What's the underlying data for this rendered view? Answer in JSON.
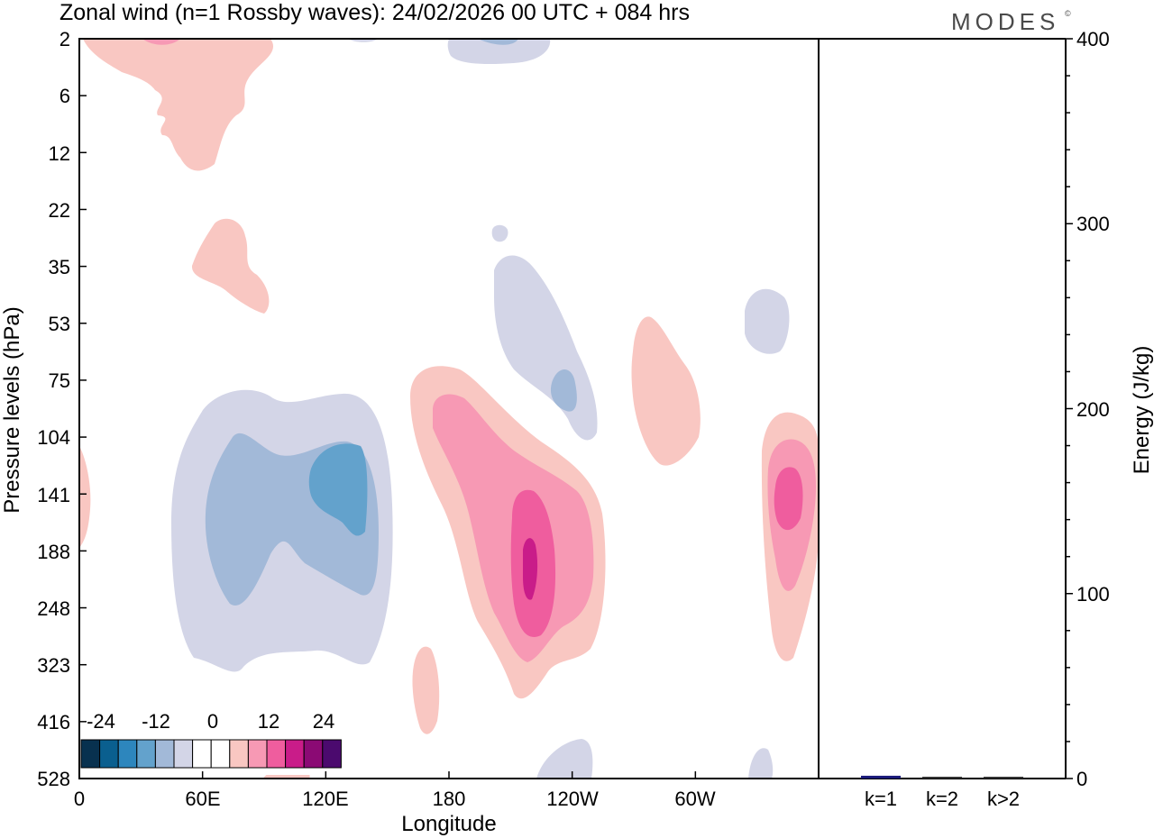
{
  "title": "Zonal wind (n=1 Rossby waves):  24/02/2026  00 UTC  + 084 hrs",
  "logo": "MODES",
  "logo_mark": "©",
  "chart_data": [
    {
      "type": "heatmap",
      "title": "Zonal wind (n=1 Rossby waves):  24/02/2026  00 UTC  + 084 hrs",
      "xlabel": "Longitude",
      "ylabel": "Pressure levels (hPa)",
      "x_ticks": [
        "0",
        "60E",
        "120E",
        "180",
        "120W",
        "60W"
      ],
      "x_tick_degrees": [
        0,
        60,
        120,
        180,
        240,
        300
      ],
      "xlim_degrees_east": [
        0,
        360
      ],
      "y_ticks": [
        "2",
        "6",
        "12",
        "22",
        "35",
        "53",
        "75",
        "104",
        "141",
        "188",
        "248",
        "323",
        "416",
        "528"
      ],
      "colorbar": {
        "labels": [
          "-24",
          "-12",
          "0",
          "12",
          "24"
        ],
        "colors": [
          "#08314f",
          "#0a5f8f",
          "#2d86bd",
          "#63a2cc",
          "#a2b9d8",
          "#d3d5e7",
          "#ffffff",
          "#ffffff",
          "#f9c7c2",
          "#f799b4",
          "#ef5d9e",
          "#c91c89",
          "#8b0a74",
          "#4b0a6e"
        ]
      },
      "features": [
        {
          "label": "negative",
          "level": -4,
          "lon": 98,
          "pressure": 141
        },
        {
          "label": "negative",
          "level": -8,
          "lon": 98,
          "pressure": 170
        },
        {
          "label": "negative",
          "level": -12,
          "lon": 120,
          "pressure": 141
        },
        {
          "label": "negative",
          "level": -4,
          "lon": 224,
          "pressure": 75
        },
        {
          "label": "negative",
          "level": -8,
          "lon": 236,
          "pressure": 75
        },
        {
          "label": "negative",
          "level": -4,
          "lon": 333,
          "pressure": 53
        },
        {
          "label": "positive",
          "level": 4,
          "lon": 50,
          "pressure": 10
        },
        {
          "label": "positive",
          "level": 4,
          "lon": 72,
          "pressure": 32
        },
        {
          "label": "positive",
          "level": 4,
          "lon": 215,
          "pressure": 188
        },
        {
          "label": "positive",
          "level": 8,
          "lon": 215,
          "pressure": 188
        },
        {
          "label": "positive",
          "level": 12,
          "lon": 220,
          "pressure": 188
        },
        {
          "label": "positive",
          "level": 20,
          "lon": 220,
          "pressure": 188
        },
        {
          "label": "positive",
          "level": 4,
          "lon": 275,
          "pressure": 104
        },
        {
          "label": "positive",
          "level": 4,
          "lon": 350,
          "pressure": 141
        },
        {
          "label": "positive",
          "level": 8,
          "lon": 350,
          "pressure": 141
        },
        {
          "label": "positive",
          "level": 12,
          "lon": 350,
          "pressure": 141
        },
        {
          "label": "positive",
          "level": 4,
          "lon": 165,
          "pressure": 350
        }
      ]
    },
    {
      "type": "bar",
      "categories": [
        "k=1",
        "k=2",
        "k>2"
      ],
      "values": [
        1.5,
        0.8,
        0.8
      ],
      "colors": [
        "#1a1a7a",
        "#333333",
        "#333333"
      ],
      "ylabel": "Energy (J/kg)",
      "ylim": [
        0,
        400
      ],
      "y_ticks": [
        "0",
        "100",
        "200",
        "300",
        "400"
      ],
      "y_tick_values": [
        0,
        100,
        200,
        300,
        400
      ]
    }
  ]
}
